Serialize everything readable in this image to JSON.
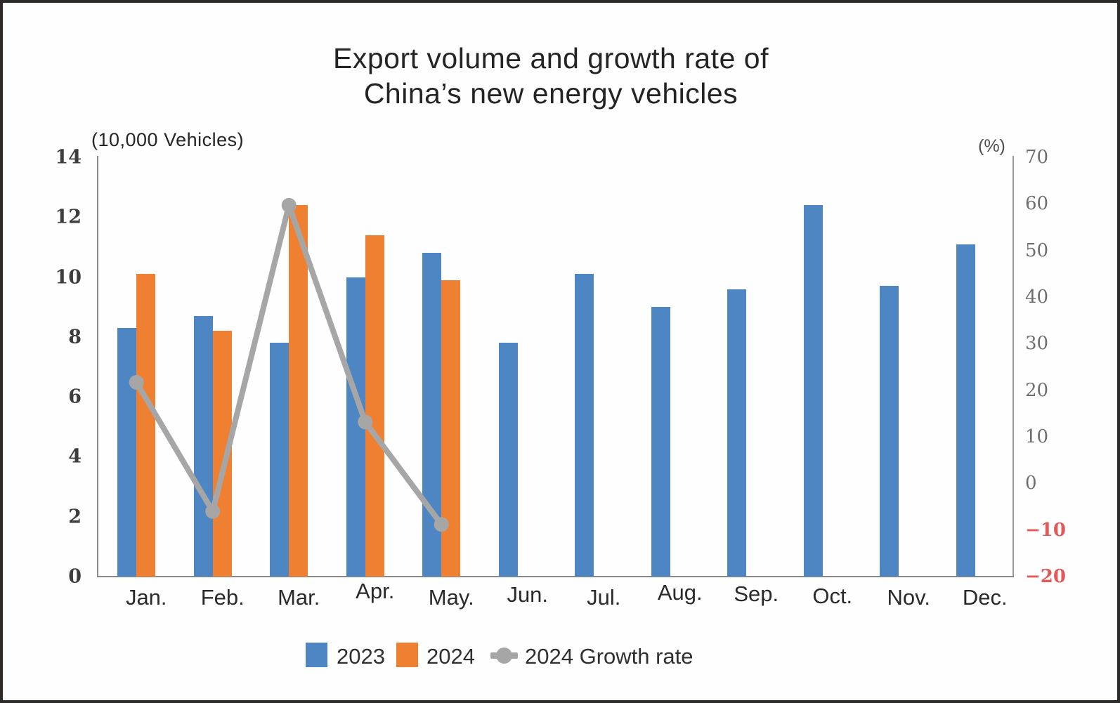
{
  "title": {
    "line1": "Export volume and growth rate of",
    "line2": "China’s new energy vehicles"
  },
  "chart_data": {
    "type": "bar+line combo",
    "categories": [
      "Jan.",
      "Feb.",
      "Mar.",
      "Apr.",
      "May.",
      "Jun.",
      "Jul.",
      "Aug.",
      "Sep.",
      "Oct.",
      "Nov.",
      "Dec."
    ],
    "series": [
      {
        "name": "2023",
        "type": "bar",
        "axis": "left",
        "color": "#4E86C4",
        "values": [
          8.3,
          8.7,
          7.8,
          10.0,
          10.8,
          7.8,
          10.1,
          9.0,
          9.6,
          12.4,
          9.7,
          11.1
        ]
      },
      {
        "name": "2024",
        "type": "bar",
        "axis": "left",
        "color": "#EF8032",
        "values": [
          10.1,
          8.2,
          12.4,
          11.4,
          9.9,
          null,
          null,
          null,
          null,
          null,
          null,
          null
        ]
      },
      {
        "name": "2024 Growth rate",
        "type": "line",
        "axis": "right",
        "color": "#A6A6A6",
        "values": [
          21.7,
          -6.0,
          59.7,
          13.2,
          -8.8,
          null,
          null,
          null,
          null,
          null,
          null,
          null
        ]
      }
    ],
    "left_axis": {
      "label": "(10,000 Vehicles)",
      "range": [
        0,
        14
      ],
      "ticks": [
        14,
        12,
        10,
        8,
        6,
        4,
        2,
        0
      ]
    },
    "right_axis": {
      "label": "(%)",
      "range": [
        -20,
        70
      ],
      "ticks": [
        70,
        60,
        50,
        40,
        30,
        20,
        10,
        0,
        -10,
        -20
      ],
      "negative_tick_color": "#E05A5A",
      "tick_color": "#6e6e6e"
    },
    "grid": "off",
    "legend_position": "bottom"
  },
  "legend": {
    "items": [
      "2023",
      "2024",
      "2024 Growth rate"
    ]
  },
  "style": {
    "axis_line_color": "#8a8a8a"
  }
}
